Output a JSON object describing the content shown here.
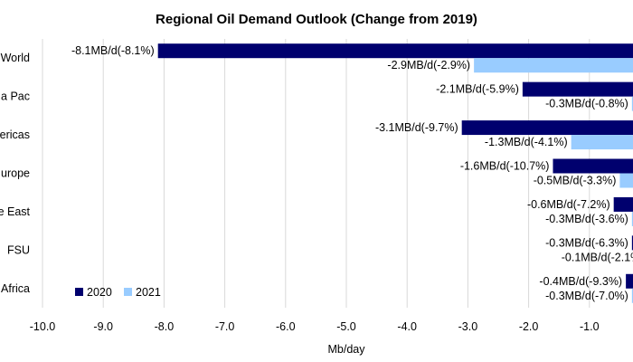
{
  "chart_data": {
    "type": "bar",
    "orientation": "horizontal",
    "title": "Regional Oil Demand Outlook (Change from 2019)",
    "xlabel": "Mb/day",
    "ylabel": "",
    "xlim": [
      -10.0,
      -0.6
    ],
    "x_ticks": [
      -10.0,
      -9.0,
      -8.0,
      -7.0,
      -6.0,
      -5.0,
      -4.0,
      -3.0,
      -2.0,
      -1.0
    ],
    "x_tick_labels": [
      "-10.0",
      "-9.0",
      "-8.0",
      "-7.0",
      "-6.0",
      "-5.0",
      "-4.0",
      "-3.0",
      "-2.0",
      "-1.0"
    ],
    "grid": "vertical",
    "legend_position": "bottom-left",
    "categories": [
      "World",
      "a Pac",
      "ericas",
      "urope",
      "e East",
      "FSU",
      "Africa"
    ],
    "series": [
      {
        "name": "2020",
        "color": "#00006e",
        "values": [
          -8.1,
          -2.1,
          -3.1,
          -1.6,
          -0.6,
          -0.3,
          -0.4
        ],
        "labels": [
          "-8.1MB/d(-8.1%)",
          "-2.1MB/d(-5.9%)",
          "-3.1MB/d(-9.7%)",
          "-1.6MB/d(-10.7%)",
          "-0.6MB/d(-7.2%)",
          "-0.3MB/d(-6.3%)",
          "-0.4MB/d(-9.3%)"
        ]
      },
      {
        "name": "2021",
        "color": "#99ccff",
        "values": [
          -2.9,
          -0.3,
          -1.3,
          -0.5,
          -0.3,
          -0.1,
          -0.3
        ],
        "labels": [
          "-2.9MB/d(-2.9%)",
          "-0.3MB/d(-0.8%)",
          "-1.3MB/d(-4.1%)",
          "-0.5MB/d(-3.3%)",
          "-0.3MB/d(-3.6%)",
          "-0.1MB/d(-2.1%",
          "-0.3MB/d(-7.0%)"
        ]
      }
    ]
  },
  "colors": {
    "grid": "#d9d9d9",
    "text": "#000000",
    "background": "#ffffff"
  }
}
